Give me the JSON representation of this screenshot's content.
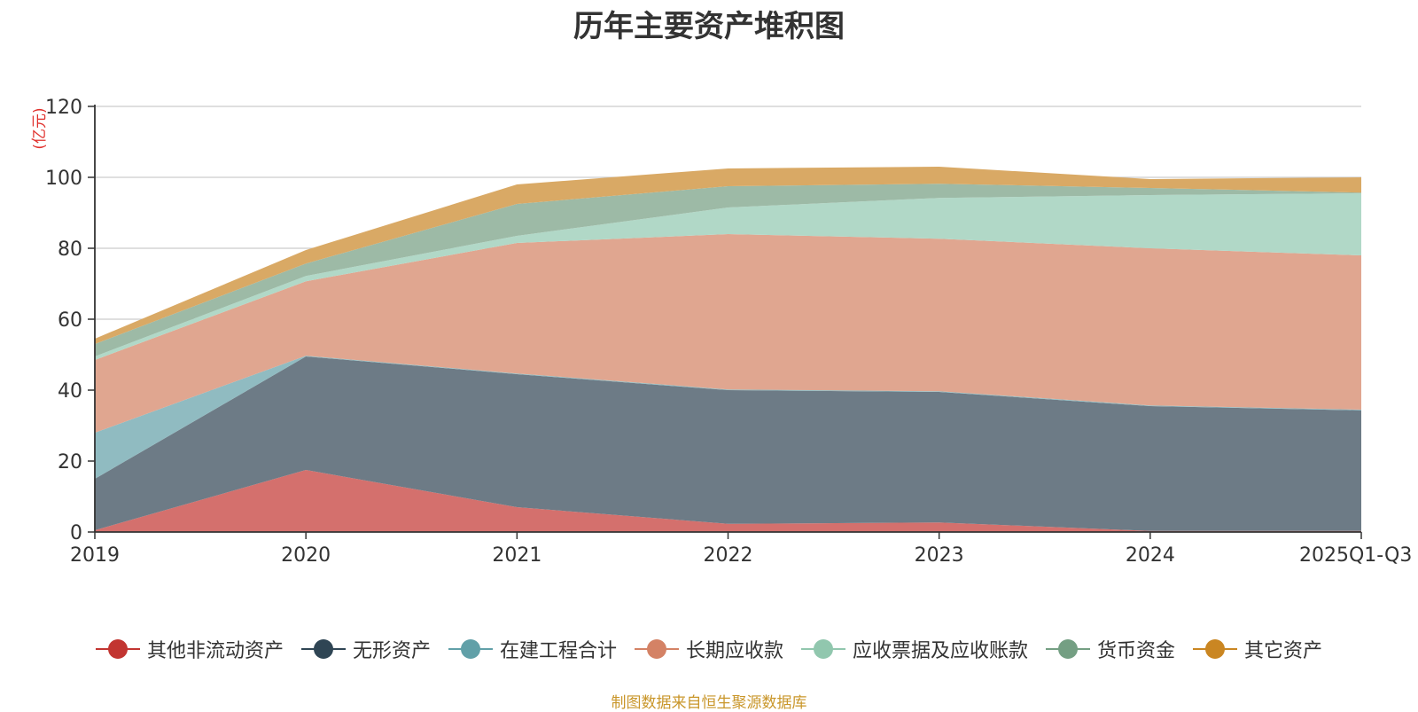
{
  "chart_data": {
    "type": "area",
    "stacked": true,
    "title": "历年主要资产堆积图",
    "ylabel": "(亿元)",
    "ylim": [
      0,
      120
    ],
    "yticks": [
      0,
      20,
      40,
      60,
      80,
      100,
      120
    ],
    "grid": true,
    "legend_position": "bottom",
    "categories": [
      "2019",
      "2020",
      "2021",
      "2022",
      "2023",
      "2024",
      "2025Q1-Q3"
    ],
    "series": [
      {
        "name": "其他非流动资产",
        "color": "#c23531",
        "fill": "#d4706d",
        "values": [
          0.5,
          17.5,
          7.0,
          2.3,
          2.7,
          0.3,
          0.3
        ]
      },
      {
        "name": "无形资产",
        "color": "#2f4554",
        "fill": "#6d7b86",
        "values": [
          14.5,
          32.0,
          37.5,
          37.7,
          36.8,
          35.2,
          34.0
        ]
      },
      {
        "name": "在建工程合计",
        "color": "#61a0a8",
        "fill": "#90bbc1",
        "values": [
          13.0,
          0.2,
          0.2,
          0.2,
          0.2,
          0.2,
          0.2
        ]
      },
      {
        "name": "长期应收款",
        "color": "#d48265",
        "fill": "#e0a690",
        "values": [
          20.5,
          21.0,
          36.8,
          43.8,
          43.0,
          44.3,
          43.5
        ]
      },
      {
        "name": "应收票据及应收账款",
        "color": "#91c7ae",
        "fill": "#b1d8c7",
        "values": [
          1.0,
          1.5,
          2.0,
          7.5,
          11.5,
          15.0,
          17.5
        ]
      },
      {
        "name": "货币资金",
        "color": "#749f83",
        "fill": "#9dbaa6",
        "values": [
          3.5,
          3.5,
          9.0,
          6.0,
          4.0,
          2.0,
          0.2
        ]
      },
      {
        "name": "其它资产",
        "color": "#ca8622",
        "fill": "#d9a965",
        "values": [
          1.5,
          3.8,
          5.5,
          5.0,
          4.8,
          2.5,
          4.3
        ]
      }
    ]
  },
  "source_note": "制图数据来自恒生聚源数据库"
}
